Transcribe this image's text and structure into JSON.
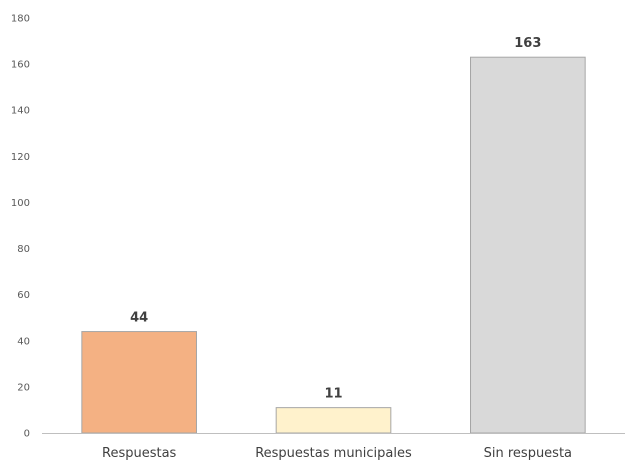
{
  "chart_data": {
    "type": "bar",
    "title": "",
    "xlabel": "",
    "ylabel": "",
    "ylim": [
      0,
      180
    ],
    "yticks": [
      0,
      20,
      40,
      60,
      80,
      100,
      120,
      140,
      160,
      180
    ],
    "grid": false,
    "legend": "none",
    "data_labels": true,
    "categories": [
      "Respuestas",
      "Respuestas municipales",
      "Sin respuesta"
    ],
    "values": [
      44,
      11,
      163
    ],
    "colors": [
      "#F4B183",
      "#FFF2CC",
      "#D9D9D9"
    ],
    "border_color": "#A6A6A6",
    "axis_color": "#BFBFBF"
  }
}
